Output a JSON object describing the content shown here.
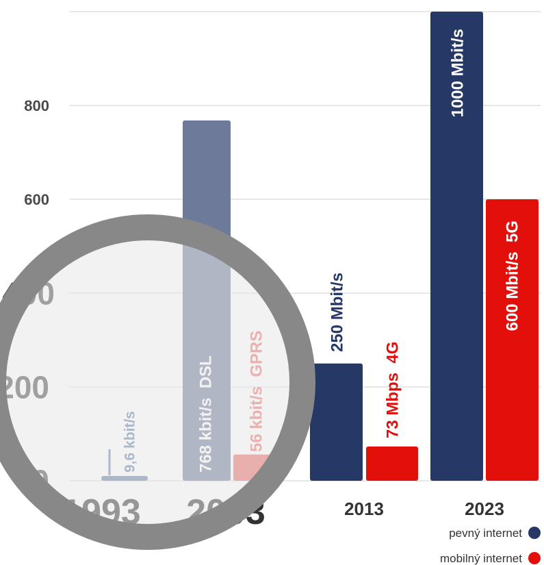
{
  "chart_data": {
    "type": "bar",
    "title": "",
    "xlabel": "",
    "ylabel": "",
    "categories": [
      "1993",
      "2003",
      "2013",
      "2023"
    ],
    "ylim": [
      0,
      1000
    ],
    "yticks": [
      0,
      200,
      400,
      600,
      800
    ],
    "grid": true,
    "legend_placement": "bottom-right",
    "series": [
      {
        "name": "pevný internet",
        "color": "#263866",
        "values": [
          9.6,
          768,
          250,
          1000
        ],
        "labels": [
          "9,6 kbit/s",
          "768 kbit/s  DSL",
          "250 Mbit/s",
          "1000 Mbit/s"
        ]
      },
      {
        "name": "mobilný internet",
        "color": "#e30f0b",
        "values": [
          null,
          56,
          73,
          600
        ],
        "labels": [
          "",
          "56 kbit/s  GPRS",
          "73 Mbps  4G",
          "600 Mbit/s  5G"
        ]
      }
    ],
    "magnifier": {
      "covers_categories": [
        "1993",
        "2003"
      ]
    }
  }
}
